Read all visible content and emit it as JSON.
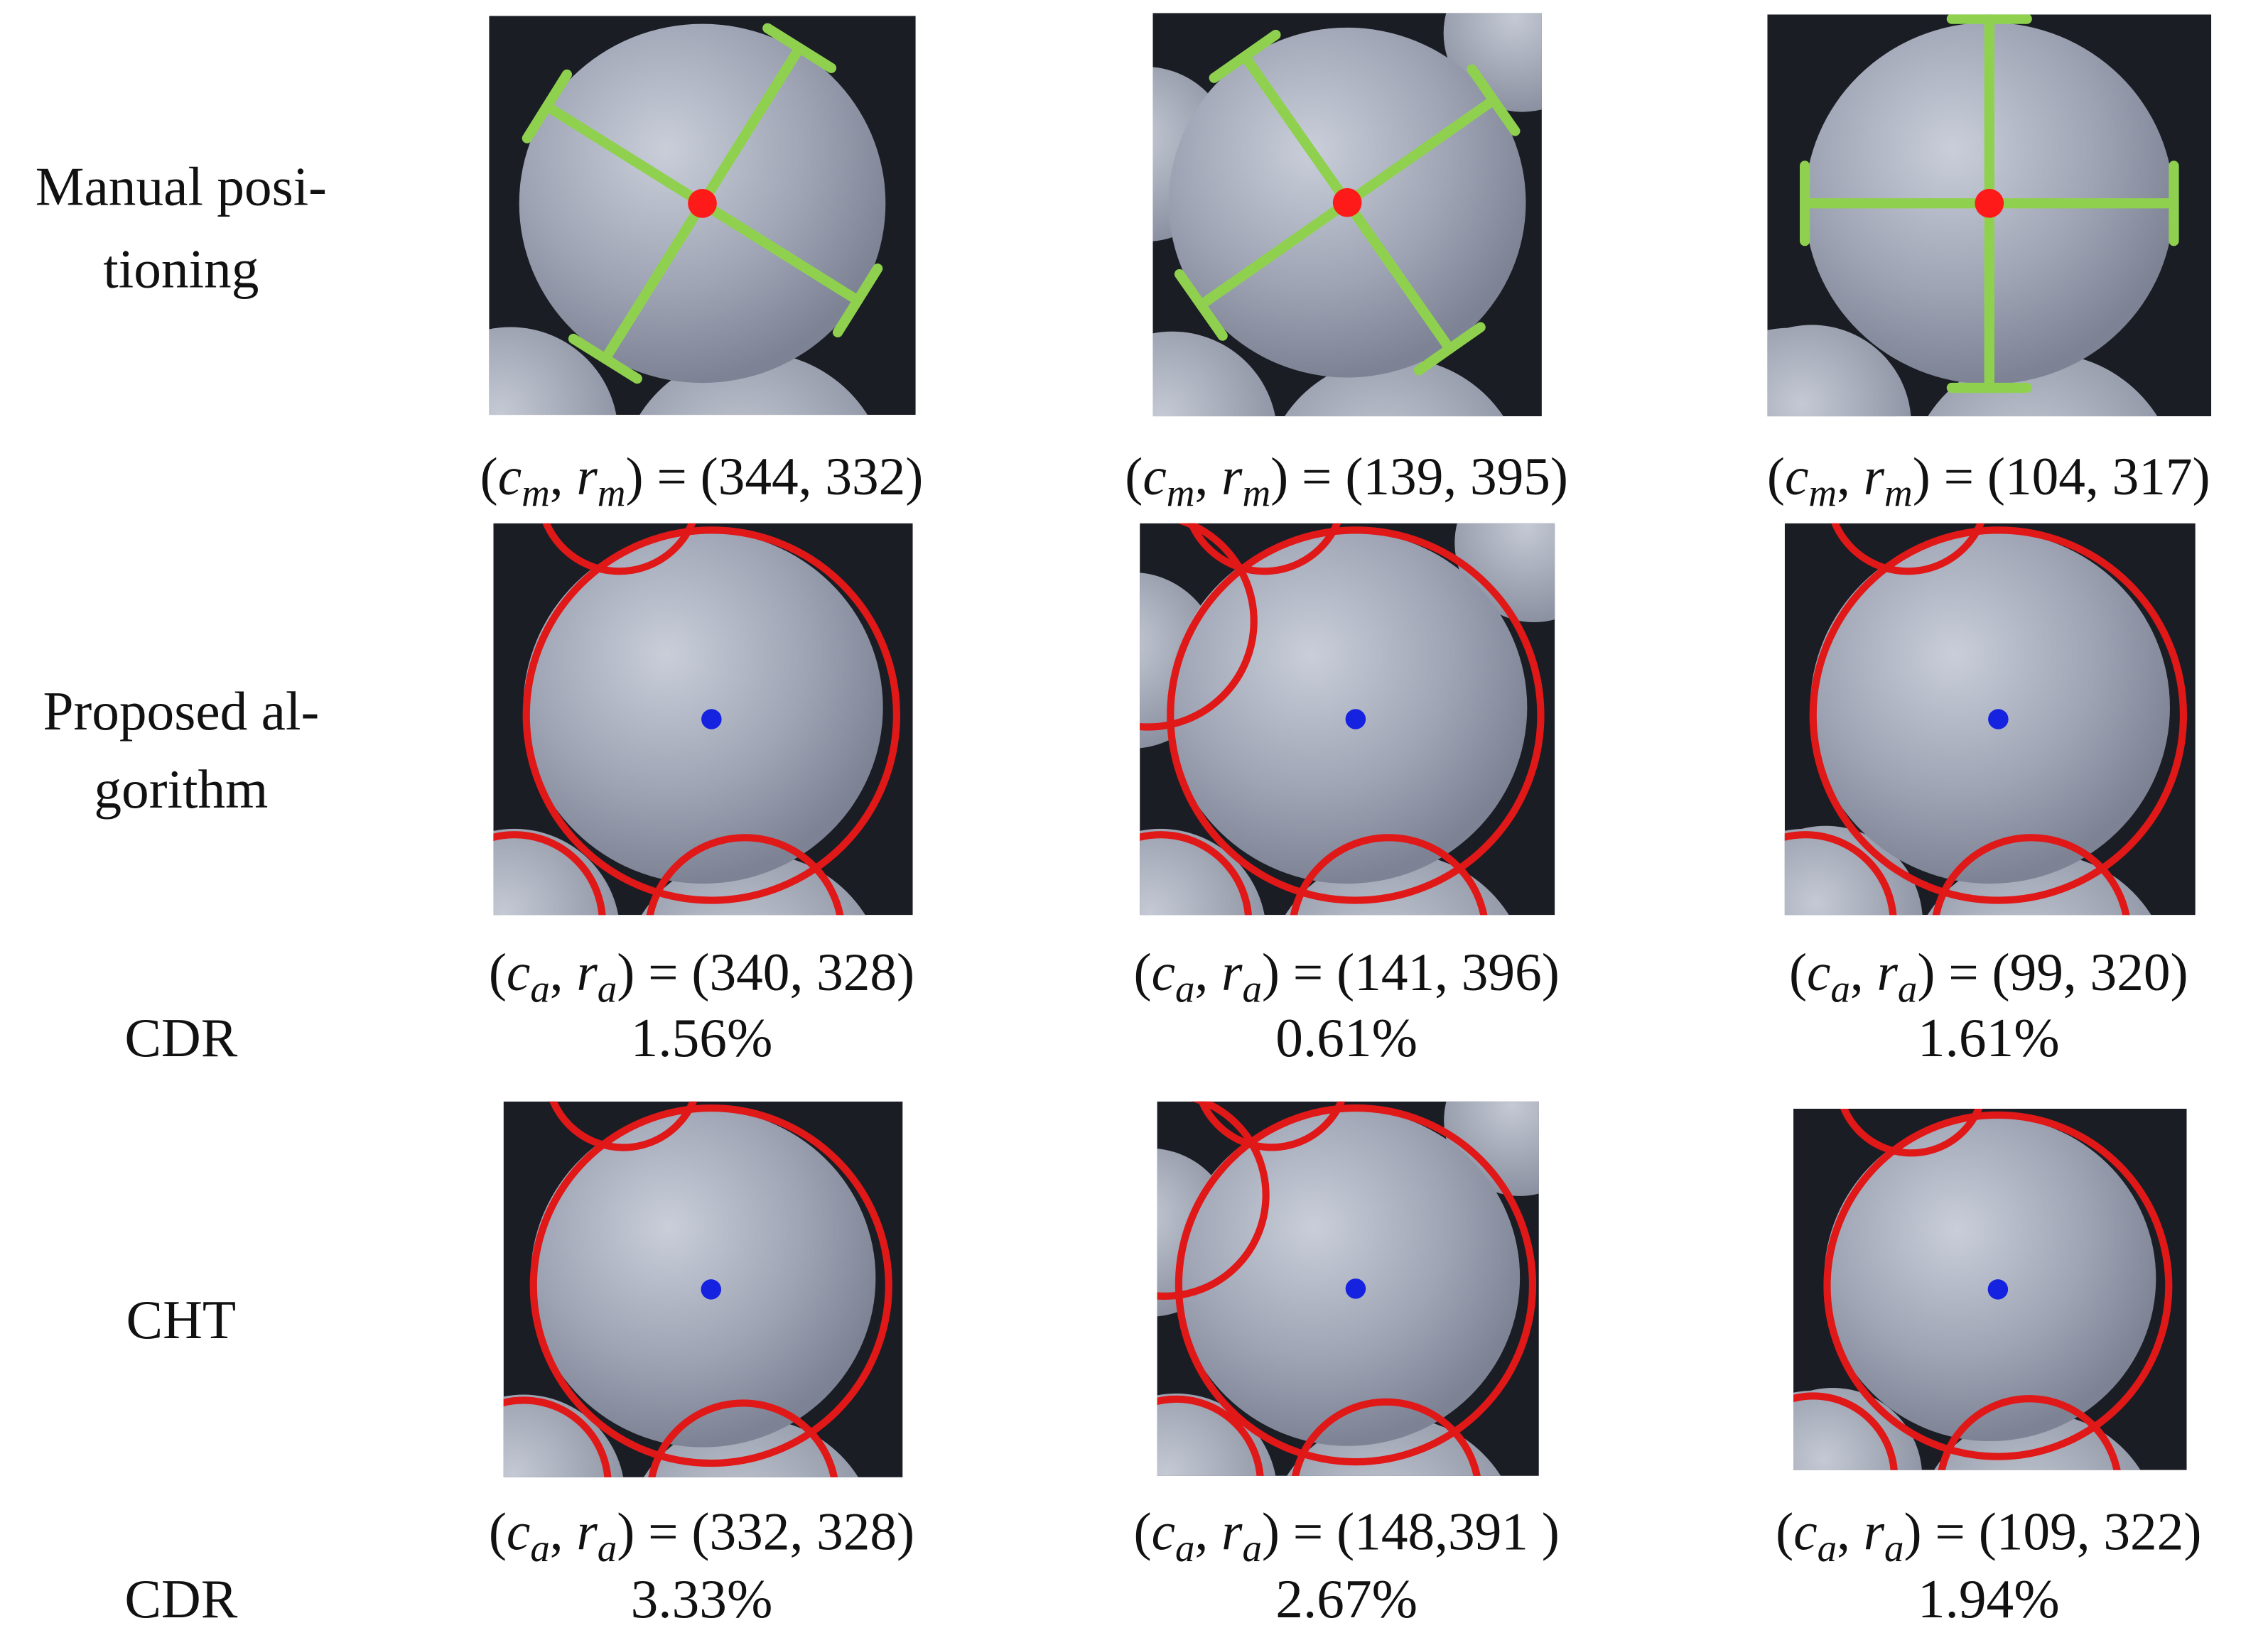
{
  "rows": [
    {
      "label": [
        "Manual posi-",
        "tioning"
      ],
      "cells": [
        {
          "caption": [
            {
              "text": "("
            },
            {
              "text": "c",
              "sub": "m"
            },
            {
              "text": ", "
            },
            {
              "text": "r",
              "sub": "m"
            },
            {
              "text": ") = (344, 332)"
            }
          ]
        },
        {
          "caption": [
            {
              "text": "("
            },
            {
              "text": "c",
              "sub": "m"
            },
            {
              "text": ", "
            },
            {
              "text": "r",
              "sub": "m"
            },
            {
              "text": ") = (139, 395)"
            }
          ]
        },
        {
          "caption": [
            {
              "text": "("
            },
            {
              "text": "c",
              "sub": "m"
            },
            {
              "text": ", "
            },
            {
              "text": "r",
              "sub": "m"
            },
            {
              "text": ") = (104, 317)"
            }
          ]
        }
      ]
    },
    {
      "label": [
        "Proposed al-",
        "gorithm"
      ],
      "metric_label": "CDR",
      "cells": [
        {
          "caption": [
            {
              "text": "("
            },
            {
              "text": "c",
              "sub": "a"
            },
            {
              "text": ", "
            },
            {
              "text": "r",
              "sub": "a"
            },
            {
              "text": ") = (340, 328)"
            }
          ],
          "cdr": "1.56%"
        },
        {
          "caption": [
            {
              "text": "("
            },
            {
              "text": "c",
              "sub": "a"
            },
            {
              "text": ", "
            },
            {
              "text": "r",
              "sub": "a"
            },
            {
              "text": ") = (141, 396)"
            }
          ],
          "cdr": "0.61%"
        },
        {
          "caption": [
            {
              "text": "("
            },
            {
              "text": "c",
              "sub": "a"
            },
            {
              "text": ", "
            },
            {
              "text": "r",
              "sub": "a"
            },
            {
              "text": ") = (99, 320)"
            }
          ],
          "cdr": "1.61%"
        }
      ]
    },
    {
      "label": [
        "CHT"
      ],
      "metric_label": "CDR",
      "cells": [
        {
          "caption": [
            {
              "text": "("
            },
            {
              "text": "c",
              "sub": "a"
            },
            {
              "text": ", "
            },
            {
              "text": "r",
              "sub": "a"
            },
            {
              "text": ") = (332, 328)"
            }
          ],
          "cdr": "3.33%"
        },
        {
          "caption": [
            {
              "text": "("
            },
            {
              "text": "c",
              "sub": "a"
            },
            {
              "text": ", "
            },
            {
              "text": "r",
              "sub": "a"
            },
            {
              "text": ") = (148,391 )"
            }
          ],
          "cdr": "2.67%"
        },
        {
          "caption": [
            {
              "text": "("
            },
            {
              "text": "c",
              "sub": "a"
            },
            {
              "text": ", "
            },
            {
              "text": "r",
              "sub": "a"
            },
            {
              "text": ") = (109, 322)"
            }
          ],
          "cdr": "1.94%"
        }
      ]
    }
  ]
}
